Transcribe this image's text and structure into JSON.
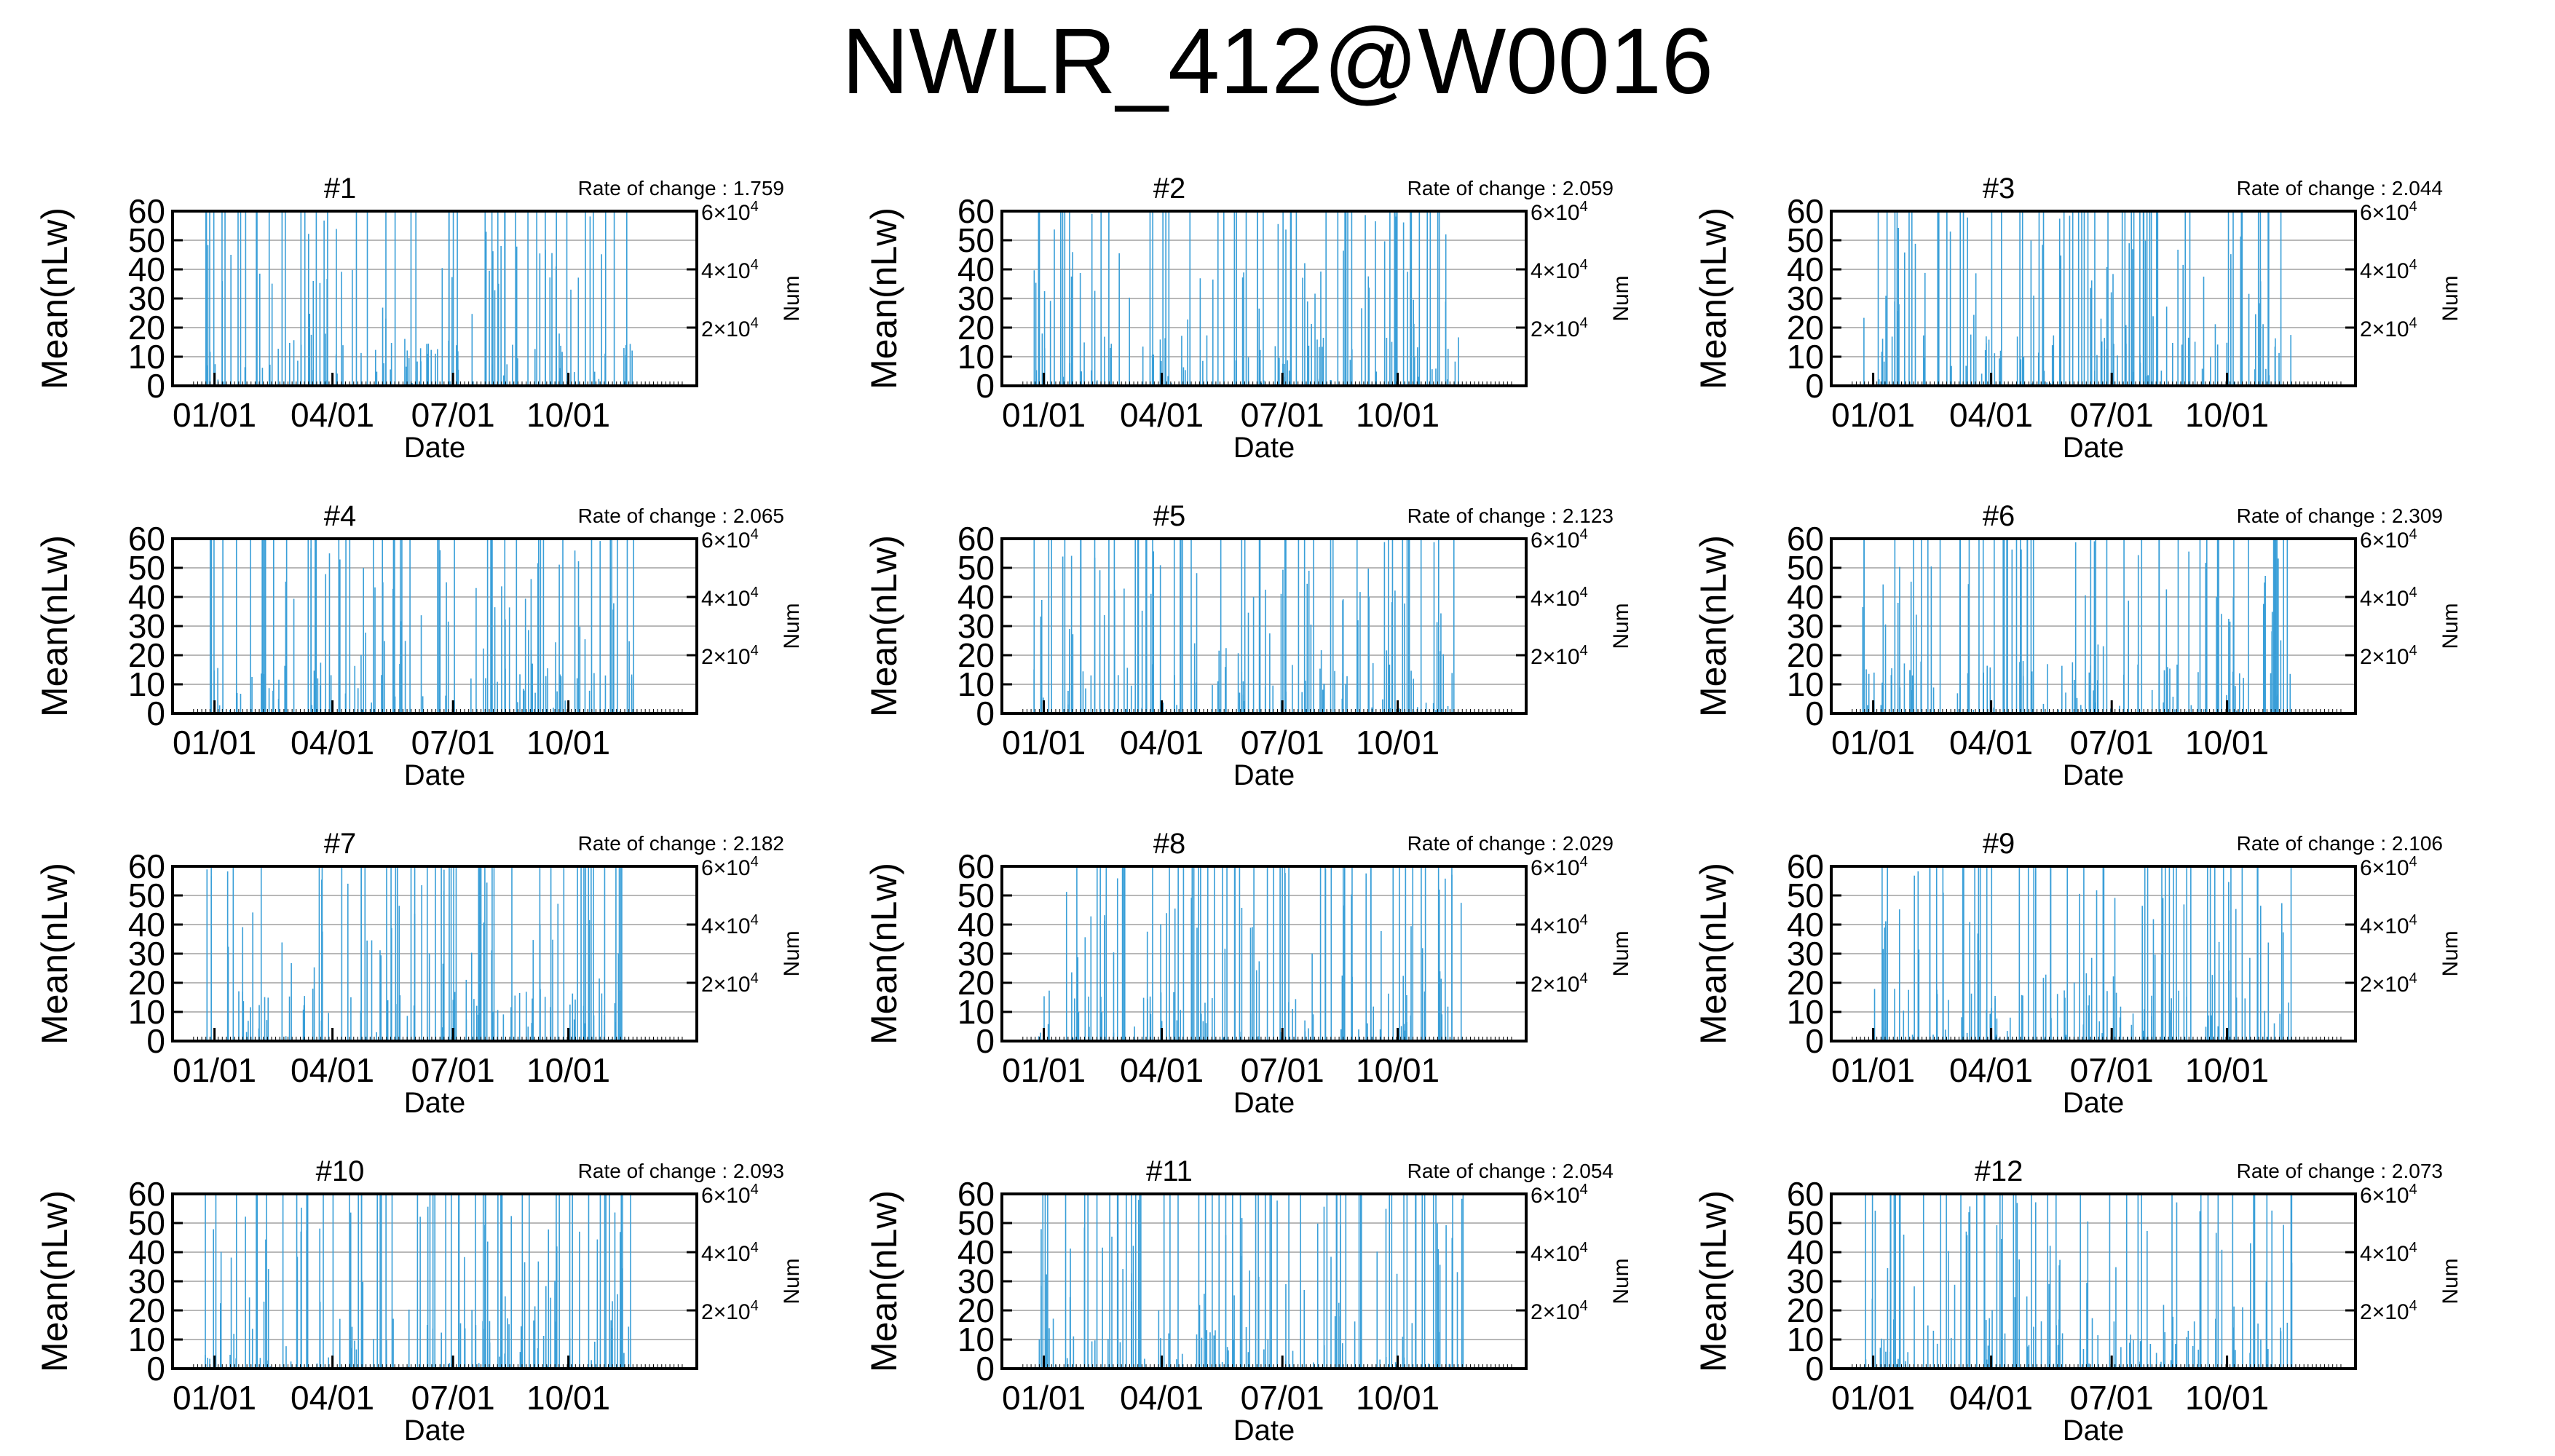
{
  "title": "NWLR_412@W0016",
  "colors": {
    "series": "#3a9fd8",
    "grid": "#a0a0a0",
    "axis": "#000000"
  },
  "axes": {
    "xlabel": "Date",
    "ylabel": "Mean(nLw)",
    "y2label": "Num",
    "yticks": [
      "0",
      "10",
      "20",
      "30",
      "40",
      "50",
      "60"
    ],
    "ylim": [
      0,
      60
    ],
    "xticks": [
      "01/01",
      "04/01",
      "07/01",
      "10/01"
    ],
    "y2ticks": [
      {
        "mant": "2",
        "exp": "4"
      },
      {
        "mant": "4",
        "exp": "4"
      },
      {
        "mant": "6",
        "exp": "4"
      }
    ],
    "y2lim": [
      0,
      60000
    ]
  },
  "chart_data": [
    {
      "type": "bar",
      "title": "#1",
      "rate_label": "Rate of change : 1.759"
    },
    {
      "type": "bar",
      "title": "#2",
      "rate_label": "Rate of change : 2.059"
    },
    {
      "type": "bar",
      "title": "#3",
      "rate_label": "Rate of change : 2.044"
    },
    {
      "type": "bar",
      "title": "#4",
      "rate_label": "Rate of change : 2.065"
    },
    {
      "type": "bar",
      "title": "#5",
      "rate_label": "Rate of change : 2.123"
    },
    {
      "type": "bar",
      "title": "#6",
      "rate_label": "Rate of change : 2.309"
    },
    {
      "type": "bar",
      "title": "#7",
      "rate_label": "Rate of change : 2.182"
    },
    {
      "type": "bar",
      "title": "#8",
      "rate_label": "Rate of change : 2.029"
    },
    {
      "type": "bar",
      "title": "#9",
      "rate_label": "Rate of change : 2.106"
    },
    {
      "type": "bar",
      "title": "#10",
      "rate_label": "Rate of change : 2.093"
    },
    {
      "type": "bar",
      "title": "#11",
      "rate_label": "Rate of change : 2.054"
    },
    {
      "type": "bar",
      "title": "#12",
      "rate_label": "Rate of change : 2.073"
    }
  ]
}
